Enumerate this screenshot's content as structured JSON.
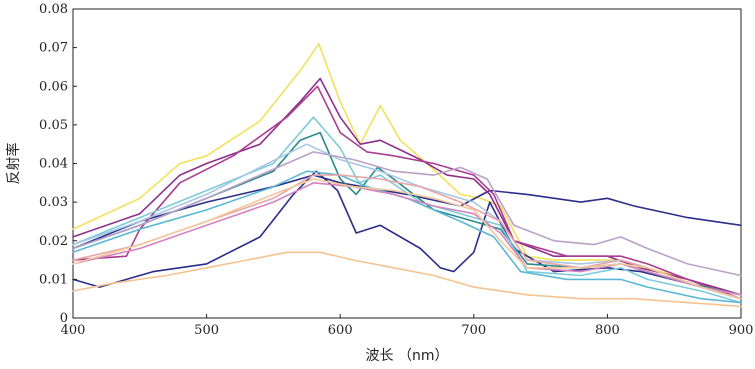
{
  "chart_data": {
    "type": "line",
    "title": "",
    "xlabel": "波长 （nm）",
    "ylabel": "反射率",
    "xlim": [
      400,
      900
    ],
    "ylim": [
      0,
      0.08
    ],
    "xticks": [
      400,
      500,
      600,
      700,
      800,
      900
    ],
    "xtick_labels": [
      "400",
      "500",
      "600",
      "700",
      "800",
      "900"
    ],
    "yticks": [
      0,
      0.01,
      0.02,
      0.03,
      0.04,
      0.05,
      0.06,
      0.07,
      0.08
    ],
    "ytick_labels": [
      "0",
      "0.01",
      "0.02",
      "0.03",
      "0.04",
      "0.05",
      "0.06",
      "0.07",
      "0.08"
    ],
    "grid": false,
    "legend": "none",
    "series": [
      {
        "color": "#f5e05a",
        "points": [
          [
            400,
            0.023
          ],
          [
            450,
            0.031
          ],
          [
            480,
            0.04
          ],
          [
            500,
            0.042
          ],
          [
            540,
            0.051
          ],
          [
            570,
            0.064
          ],
          [
            584,
            0.071
          ],
          [
            600,
            0.056
          ],
          [
            615,
            0.045
          ],
          [
            630,
            0.055
          ],
          [
            645,
            0.046
          ],
          [
            665,
            0.04
          ],
          [
            690,
            0.032
          ],
          [
            705,
            0.031
          ],
          [
            720,
            0.029
          ],
          [
            740,
            0.016
          ],
          [
            760,
            0.015
          ],
          [
            790,
            0.015
          ],
          [
            810,
            0.015
          ],
          [
            830,
            0.013
          ],
          [
            860,
            0.01
          ],
          [
            900,
            0.006
          ]
        ]
      },
      {
        "color": "#2e2f8c",
        "points": [
          [
            400,
            0.018
          ],
          [
            450,
            0.025
          ],
          [
            500,
            0.03
          ],
          [
            550,
            0.034
          ],
          [
            580,
            0.037
          ],
          [
            600,
            0.035
          ],
          [
            650,
            0.032
          ],
          [
            690,
            0.029
          ],
          [
            712,
            0.033
          ],
          [
            740,
            0.032
          ],
          [
            780,
            0.03
          ],
          [
            800,
            0.031
          ],
          [
            820,
            0.029
          ],
          [
            860,
            0.026
          ],
          [
            900,
            0.024
          ]
        ]
      },
      {
        "color": "#2b2d8a",
        "points": [
          [
            400,
            0.01
          ],
          [
            420,
            0.008
          ],
          [
            460,
            0.012
          ],
          [
            500,
            0.014
          ],
          [
            540,
            0.021
          ],
          [
            565,
            0.032
          ],
          [
            582,
            0.038
          ],
          [
            598,
            0.033
          ],
          [
            612,
            0.022
          ],
          [
            630,
            0.024
          ],
          [
            660,
            0.018
          ],
          [
            675,
            0.013
          ],
          [
            685,
            0.012
          ],
          [
            700,
            0.017
          ],
          [
            712,
            0.03
          ],
          [
            730,
            0.018
          ],
          [
            760,
            0.012
          ],
          [
            800,
            0.013
          ],
          [
            825,
            0.012
          ],
          [
            860,
            0.009
          ],
          [
            900,
            0.005
          ]
        ]
      },
      {
        "color": "#8e2f8a",
        "points": [
          [
            400,
            0.021
          ],
          [
            450,
            0.027
          ],
          [
            480,
            0.037
          ],
          [
            500,
            0.04
          ],
          [
            540,
            0.045
          ],
          [
            570,
            0.056
          ],
          [
            585,
            0.062
          ],
          [
            600,
            0.052
          ],
          [
            615,
            0.045
          ],
          [
            630,
            0.046
          ],
          [
            660,
            0.041
          ],
          [
            680,
            0.037
          ],
          [
            700,
            0.036
          ],
          [
            712,
            0.032
          ],
          [
            730,
            0.02
          ],
          [
            760,
            0.016
          ],
          [
            800,
            0.016
          ],
          [
            825,
            0.013
          ],
          [
            860,
            0.01
          ],
          [
            900,
            0.006
          ]
        ]
      },
      {
        "color": "#a93d8f",
        "points": [
          [
            400,
            0.015
          ],
          [
            440,
            0.016
          ],
          [
            450,
            0.023
          ],
          [
            480,
            0.035
          ],
          [
            520,
            0.042
          ],
          [
            560,
            0.052
          ],
          [
            583,
            0.06
          ],
          [
            600,
            0.048
          ],
          [
            620,
            0.043
          ],
          [
            640,
            0.042
          ],
          [
            670,
            0.04
          ],
          [
            700,
            0.037
          ],
          [
            715,
            0.032
          ],
          [
            730,
            0.02
          ],
          [
            770,
            0.016
          ],
          [
            810,
            0.016
          ],
          [
            830,
            0.014
          ],
          [
            860,
            0.01
          ],
          [
            900,
            0.005
          ]
        ]
      },
      {
        "color": "#2a8a8c",
        "points": [
          [
            400,
            0.018
          ],
          [
            450,
            0.024
          ],
          [
            500,
            0.031
          ],
          [
            550,
            0.038
          ],
          [
            570,
            0.046
          ],
          [
            585,
            0.048
          ],
          [
            600,
            0.036
          ],
          [
            612,
            0.032
          ],
          [
            628,
            0.039
          ],
          [
            640,
            0.036
          ],
          [
            670,
            0.028
          ],
          [
            700,
            0.025
          ],
          [
            720,
            0.023
          ],
          [
            740,
            0.014
          ],
          [
            780,
            0.013
          ],
          [
            810,
            0.014
          ],
          [
            830,
            0.012
          ],
          [
            860,
            0.009
          ],
          [
            900,
            0.006
          ]
        ]
      },
      {
        "color": "#7ccbd9",
        "points": [
          [
            400,
            0.019
          ],
          [
            450,
            0.026
          ],
          [
            500,
            0.033
          ],
          [
            550,
            0.04
          ],
          [
            580,
            0.052
          ],
          [
            600,
            0.044
          ],
          [
            614,
            0.035
          ],
          [
            630,
            0.037
          ],
          [
            660,
            0.03
          ],
          [
            700,
            0.026
          ],
          [
            720,
            0.024
          ],
          [
            740,
            0.012
          ],
          [
            780,
            0.011
          ],
          [
            810,
            0.013
          ],
          [
            830,
            0.01
          ],
          [
            870,
            0.007
          ],
          [
            900,
            0.004
          ]
        ]
      },
      {
        "color": "#5bb8d4",
        "points": [
          [
            400,
            0.017
          ],
          [
            450,
            0.023
          ],
          [
            500,
            0.028
          ],
          [
            550,
            0.034
          ],
          [
            575,
            0.038
          ],
          [
            600,
            0.037
          ],
          [
            620,
            0.034
          ],
          [
            650,
            0.031
          ],
          [
            690,
            0.025
          ],
          [
            715,
            0.021
          ],
          [
            735,
            0.012
          ],
          [
            770,
            0.01
          ],
          [
            810,
            0.01
          ],
          [
            830,
            0.008
          ],
          [
            870,
            0.005
          ],
          [
            900,
            0.004
          ]
        ]
      },
      {
        "color": "#a8c7e2",
        "points": [
          [
            400,
            0.019
          ],
          [
            450,
            0.025
          ],
          [
            500,
            0.032
          ],
          [
            540,
            0.039
          ],
          [
            575,
            0.045
          ],
          [
            600,
            0.041
          ],
          [
            630,
            0.038
          ],
          [
            660,
            0.034
          ],
          [
            700,
            0.03
          ],
          [
            720,
            0.025
          ],
          [
            740,
            0.015
          ],
          [
            780,
            0.014
          ],
          [
            810,
            0.015
          ],
          [
            830,
            0.013
          ],
          [
            870,
            0.008
          ],
          [
            900,
            0.006
          ]
        ]
      },
      {
        "color": "#b9a1c8",
        "points": [
          [
            400,
            0.018
          ],
          [
            450,
            0.024
          ],
          [
            500,
            0.031
          ],
          [
            540,
            0.037
          ],
          [
            580,
            0.043
          ],
          [
            610,
            0.041
          ],
          [
            640,
            0.038
          ],
          [
            670,
            0.037
          ],
          [
            690,
            0.039
          ],
          [
            710,
            0.036
          ],
          [
            730,
            0.024
          ],
          [
            760,
            0.02
          ],
          [
            790,
            0.019
          ],
          [
            810,
            0.021
          ],
          [
            830,
            0.018
          ],
          [
            860,
            0.014
          ],
          [
            900,
            0.011
          ]
        ]
      },
      {
        "color": "#e9a6a8",
        "points": [
          [
            400,
            0.015
          ],
          [
            450,
            0.019
          ],
          [
            500,
            0.025
          ],
          [
            550,
            0.031
          ],
          [
            580,
            0.037
          ],
          [
            600,
            0.037
          ],
          [
            630,
            0.036
          ],
          [
            660,
            0.034
          ],
          [
            690,
            0.03
          ],
          [
            720,
            0.025
          ],
          [
            740,
            0.015
          ],
          [
            780,
            0.013
          ],
          [
            810,
            0.015
          ],
          [
            830,
            0.013
          ],
          [
            870,
            0.008
          ],
          [
            900,
            0.006
          ]
        ]
      },
      {
        "color": "#d682be",
        "points": [
          [
            400,
            0.014
          ],
          [
            450,
            0.018
          ],
          [
            500,
            0.024
          ],
          [
            550,
            0.03
          ],
          [
            580,
            0.035
          ],
          [
            610,
            0.034
          ],
          [
            640,
            0.032
          ],
          [
            670,
            0.029
          ],
          [
            700,
            0.027
          ],
          [
            720,
            0.022
          ],
          [
            740,
            0.013
          ],
          [
            780,
            0.012
          ],
          [
            810,
            0.014
          ],
          [
            830,
            0.012
          ],
          [
            870,
            0.008
          ],
          [
            900,
            0.006
          ]
        ]
      },
      {
        "color": "#f2c99a",
        "points": [
          [
            400,
            0.014
          ],
          [
            450,
            0.019
          ],
          [
            500,
            0.025
          ],
          [
            550,
            0.032
          ],
          [
            580,
            0.036
          ],
          [
            610,
            0.034
          ],
          [
            640,
            0.033
          ],
          [
            670,
            0.031
          ],
          [
            700,
            0.028
          ],
          [
            720,
            0.02
          ],
          [
            740,
            0.013
          ],
          [
            780,
            0.013
          ],
          [
            810,
            0.014
          ],
          [
            830,
            0.013
          ],
          [
            870,
            0.008
          ],
          [
            900,
            0.005
          ]
        ]
      },
      {
        "color": "#f6c28f",
        "points": [
          [
            400,
            0.007
          ],
          [
            430,
            0.009
          ],
          [
            470,
            0.011
          ],
          [
            500,
            0.013
          ],
          [
            530,
            0.015
          ],
          [
            560,
            0.017
          ],
          [
            585,
            0.017
          ],
          [
            610,
            0.015
          ],
          [
            640,
            0.013
          ],
          [
            670,
            0.011
          ],
          [
            700,
            0.008
          ],
          [
            740,
            0.006
          ],
          [
            780,
            0.005
          ],
          [
            820,
            0.005
          ],
          [
            860,
            0.004
          ],
          [
            900,
            0.003
          ]
        ]
      }
    ]
  }
}
